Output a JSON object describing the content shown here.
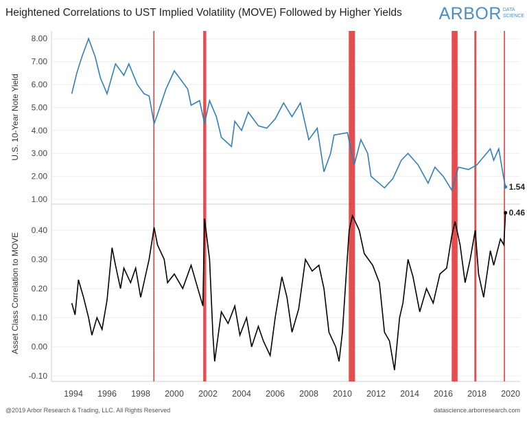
{
  "title": "Heightened Correlations to UST Implied Volatility (MOVE) Followed by Higher Yields",
  "logo": {
    "main": "ARBOR",
    "sub1": "DATA",
    "sub2": "SCIENCE",
    "color": "#4a8ec8"
  },
  "footer": {
    "left": "@2019 Arbor Research & Trading, LLC. All Rights Reserved",
    "right": "datascience.arborresearch.com"
  },
  "chart_data": [
    {
      "type": "line",
      "ylabel": "U.S. 10-Year Note Yield",
      "ylim": [
        1.0,
        8.2
      ],
      "yticks": [
        "1.00",
        "2.00",
        "3.00",
        "4.00",
        "5.00",
        "6.00",
        "7.00",
        "8.00"
      ],
      "color": "#2f7fb8",
      "end_label": "1.54",
      "grid": true,
      "x": [
        1993.9,
        1994.2,
        1994.5,
        1994.9,
        1995.3,
        1995.6,
        1996.0,
        1996.5,
        1997.0,
        1997.3,
        1997.8,
        1998.2,
        1998.5,
        1998.8,
        1999.0,
        1999.5,
        2000.0,
        2000.3,
        2000.8,
        2001.0,
        2001.5,
        2001.8,
        2002.1,
        2002.5,
        2002.8,
        2003.4,
        2003.6,
        2004.0,
        2004.4,
        2005.0,
        2005.5,
        2006.0,
        2006.5,
        2007.0,
        2007.5,
        2008.0,
        2008.5,
        2008.9,
        2009.3,
        2009.5,
        2010.3,
        2010.7,
        2011.1,
        2011.5,
        2011.7,
        2012.5,
        2013.0,
        2013.5,
        2013.9,
        2014.5,
        2015.1,
        2015.5,
        2016.0,
        2016.5,
        2016.9,
        2017.5,
        2018.0,
        2018.8,
        2019.0,
        2019.3,
        2019.6,
        2019.7
      ],
      "y": [
        5.6,
        6.5,
        7.2,
        8.0,
        7.2,
        6.3,
        5.6,
        6.9,
        6.4,
        6.9,
        6.0,
        5.6,
        5.5,
        4.3,
        4.7,
        5.8,
        6.6,
        6.3,
        5.8,
        5.1,
        5.3,
        4.3,
        5.3,
        4.6,
        3.7,
        3.3,
        4.4,
        4.0,
        4.8,
        4.2,
        4.1,
        4.5,
        5.2,
        4.6,
        5.2,
        3.6,
        4.1,
        2.2,
        3.0,
        3.8,
        3.9,
        2.5,
        3.6,
        3.0,
        2.0,
        1.5,
        1.9,
        2.7,
        3.0,
        2.5,
        1.7,
        2.4,
        2.0,
        1.4,
        2.4,
        2.3,
        2.5,
        3.2,
        2.7,
        3.2,
        1.9,
        1.54
      ]
    },
    {
      "type": "line",
      "ylabel": "Asset Class Correlation to MOVE",
      "ylim": [
        -0.12,
        0.47
      ],
      "yticks": [
        "-0.10",
        "0.00",
        "0.10",
        "0.20",
        "0.30",
        "0.40"
      ],
      "color": "#000000",
      "end_label": "0.46",
      "grid": true,
      "x": [
        1993.9,
        1994.1,
        1994.3,
        1994.6,
        1994.9,
        1995.1,
        1995.4,
        1995.7,
        1996.0,
        1996.3,
        1996.5,
        1996.8,
        1997.0,
        1997.4,
        1997.7,
        1998.0,
        1998.5,
        1998.8,
        1999.0,
        1999.4,
        1999.6,
        2000.0,
        2000.5,
        2001.0,
        2001.4,
        2001.7,
        2001.8,
        2002.1,
        2002.3,
        2002.4,
        2002.8,
        2003.2,
        2003.6,
        2003.9,
        2004.3,
        2004.6,
        2005.0,
        2005.3,
        2005.7,
        2006.0,
        2006.4,
        2006.7,
        2007.0,
        2007.4,
        2007.8,
        2008.2,
        2008.6,
        2008.9,
        2009.2,
        2009.6,
        2009.8,
        2010.0,
        2010.4,
        2010.6,
        2011.0,
        2011.3,
        2011.8,
        2012.2,
        2012.5,
        2012.8,
        2013.1,
        2013.4,
        2013.6,
        2013.9,
        2014.2,
        2014.6,
        2015.0,
        2015.4,
        2015.8,
        2016.2,
        2016.5,
        2016.7,
        2017.0,
        2017.3,
        2017.6,
        2017.9,
        2018.1,
        2018.4,
        2018.8,
        2019.0,
        2019.4,
        2019.6,
        2019.7
      ],
      "y": [
        0.15,
        0.11,
        0.23,
        0.17,
        0.1,
        0.04,
        0.1,
        0.06,
        0.16,
        0.34,
        0.28,
        0.2,
        0.27,
        0.22,
        0.27,
        0.17,
        0.3,
        0.41,
        0.35,
        0.3,
        0.22,
        0.25,
        0.2,
        0.28,
        0.2,
        0.14,
        0.44,
        0.3,
        0.04,
        -0.05,
        0.12,
        0.08,
        0.14,
        0.04,
        0.1,
        0.0,
        0.07,
        0.02,
        -0.03,
        0.1,
        0.24,
        0.17,
        0.05,
        0.13,
        0.3,
        0.26,
        0.28,
        0.2,
        0.05,
        0.0,
        -0.05,
        0.05,
        0.4,
        0.45,
        0.4,
        0.32,
        0.28,
        0.22,
        0.05,
        0.02,
        -0.08,
        0.1,
        0.15,
        0.3,
        0.24,
        0.12,
        0.2,
        0.15,
        0.25,
        0.27,
        0.38,
        0.43,
        0.35,
        0.22,
        0.3,
        0.4,
        0.25,
        0.17,
        0.33,
        0.28,
        0.37,
        0.35,
        0.46
      ]
    }
  ],
  "xticks": [
    "1994",
    "1996",
    "1998",
    "2000",
    "2002",
    "2004",
    "2006",
    "2008",
    "2010",
    "2012",
    "2014",
    "2016",
    "2018",
    "2020"
  ],
  "highlight_periods": {
    "color": "#e03a3a",
    "ranges": [
      [
        1998.75,
        1998.82
      ],
      [
        2001.72,
        2001.9
      ],
      [
        2010.38,
        2010.75
      ],
      [
        2016.5,
        2016.85
      ],
      [
        2017.85,
        2017.97
      ],
      [
        2019.6,
        2019.67
      ]
    ]
  }
}
